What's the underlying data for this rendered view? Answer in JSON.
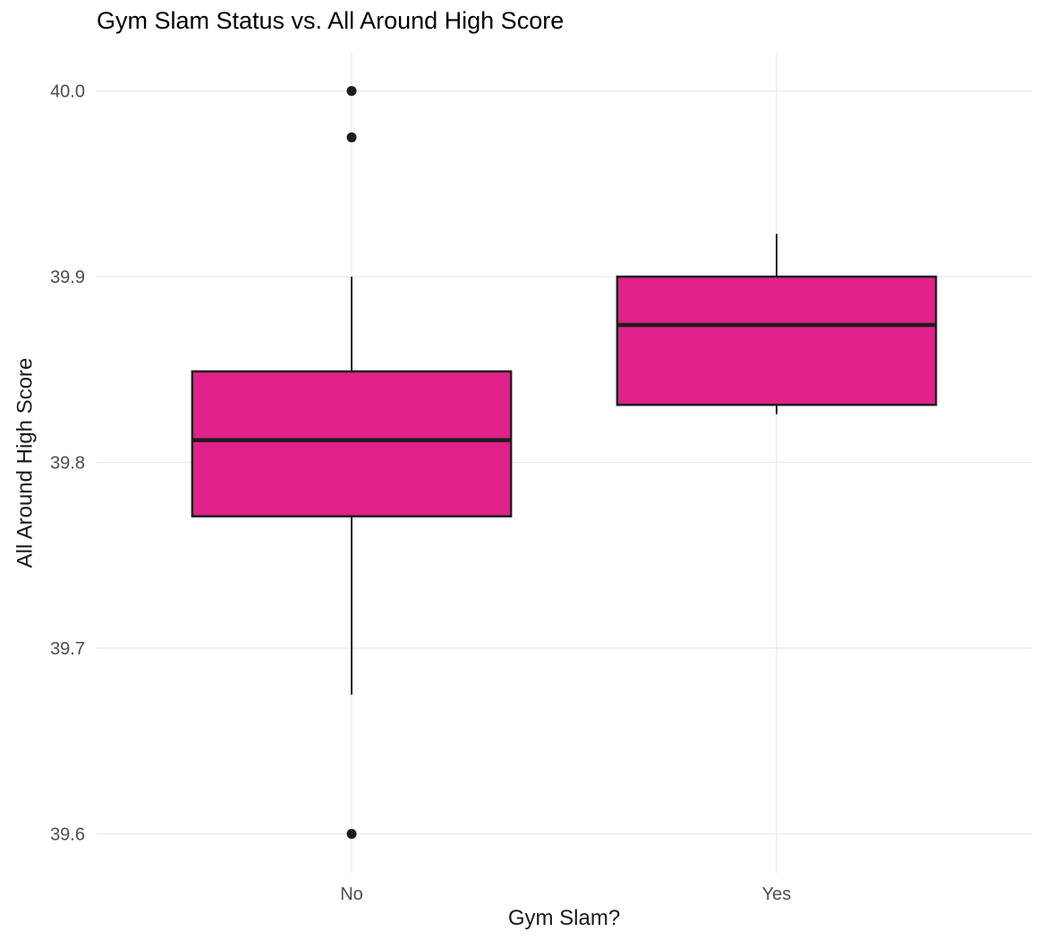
{
  "chart_data": {
    "type": "boxplot",
    "title": "Gym Slam Status vs. All Around High Score",
    "xlabel": "Gym Slam?",
    "ylabel": "All Around High Score",
    "categories": [
      "No",
      "Yes"
    ],
    "y_ticks": [
      39.6,
      39.7,
      39.8,
      39.9,
      40.0
    ],
    "ylim": [
      39.579,
      40.021
    ],
    "grid": "major horizontal lines at y ticks and vertical lines at category centers, light gray on white",
    "legend": "none",
    "series": [
      {
        "category": "No",
        "lower_whisker": 39.675,
        "q1": 39.771,
        "median": 39.812,
        "q3": 39.849,
        "upper_whisker": 39.9,
        "outliers": [
          40.0,
          39.975,
          39.6
        ]
      },
      {
        "category": "Yes",
        "lower_whisker": 39.826,
        "q1": 39.831,
        "median": 39.874,
        "q3": 39.9,
        "upper_whisker": 39.923,
        "outliers": []
      }
    ],
    "style": {
      "box_fill": "#E0218A",
      "box_stroke": "#1C1C1C",
      "grid_color": "#EBEBEB",
      "tick_label_color": "#4D4D4D",
      "title_color": "#000000",
      "axis_label_color": "#1A1A1A",
      "background": "#FFFFFF"
    }
  }
}
